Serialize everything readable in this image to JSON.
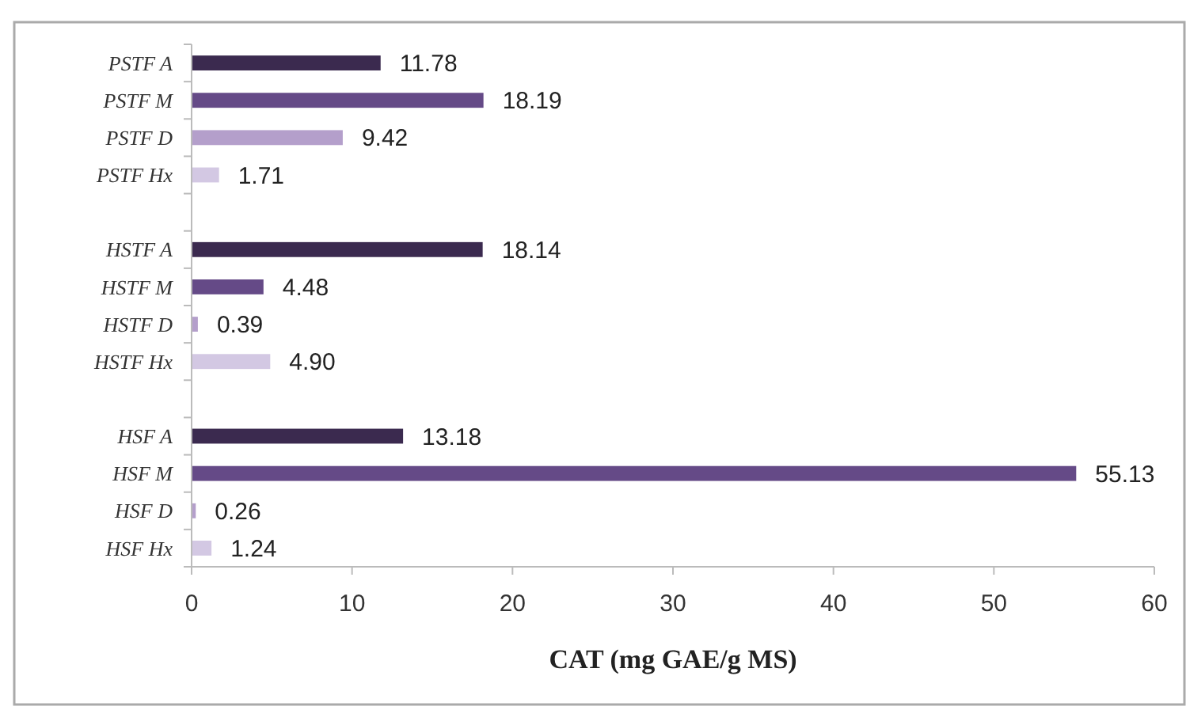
{
  "chart_data": {
    "type": "bar",
    "orientation": "horizontal",
    "xlabel": "CAT (mg GAE/g MS)",
    "categories": [
      "PSTF A",
      "PSTF M",
      "PSTF D",
      "PSTF Hx",
      null,
      "HSTF A",
      "HSTF M",
      "HSTF D",
      "HSTF Hx",
      null,
      "HSF A",
      "HSF M",
      "HSF D",
      "HSF Hx"
    ],
    "values": [
      11.78,
      18.19,
      9.42,
      1.71,
      null,
      18.14,
      4.48,
      0.39,
      4.9,
      null,
      13.18,
      55.13,
      0.26,
      1.24
    ],
    "value_labels": [
      "11.78",
      "18.19",
      "9.42",
      "1.71",
      null,
      "18.14",
      "4.48",
      "0.39",
      "4.90",
      null,
      "13.18",
      "55.13",
      "0.26",
      "1.24"
    ],
    "colors": [
      "#3b2a4f",
      "#654a87",
      "#b49fcb",
      "#d3c8e3",
      null,
      "#3b2a4f",
      "#654a87",
      "#b49fcb",
      "#d3c8e3",
      null,
      "#3b2a4f",
      "#654a87",
      "#b49fcb",
      "#d3c8e3"
    ],
    "xlim": [
      0,
      60
    ],
    "xticks": [
      0,
      10,
      20,
      30,
      40,
      50,
      60
    ],
    "grid": false
  }
}
